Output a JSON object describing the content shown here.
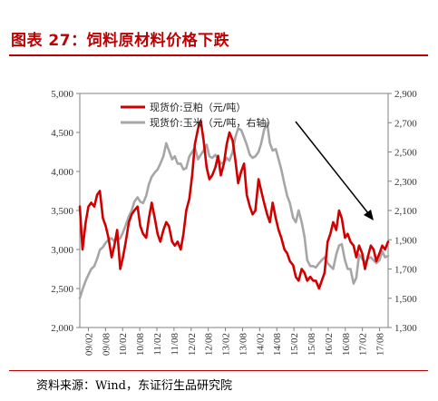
{
  "header": {
    "title": "图表 27：饲料原材料价格下跌"
  },
  "footer": {
    "source": "资料来源：Wind，东证衍生品研究院"
  },
  "chart_data": {
    "type": "line",
    "colors": {
      "soybean_meal": "#d00000",
      "corn": "#a6a6a6",
      "arrow": "#000000"
    },
    "x_tick_labels": [
      "09/02",
      "09/08",
      "10/02",
      "10/08",
      "11/02",
      "11/08",
      "12/02",
      "12/08",
      "13/02",
      "13/08",
      "14/02",
      "14/08",
      "15/02",
      "15/08",
      "16/02",
      "16/08",
      "17/02",
      "17/08"
    ],
    "x_range": [
      2009.0,
      2017.92
    ],
    "y_left": {
      "range": [
        2000,
        5000
      ],
      "ticks": [
        2000,
        2500,
        3000,
        3500,
        4000,
        4500,
        5000
      ],
      "tick_labels": [
        "2,000",
        "2,500",
        "3,000",
        "3,500",
        "4,000",
        "4,500",
        "5,000"
      ]
    },
    "y_right": {
      "range": [
        1300,
        2900
      ],
      "ticks": [
        1300,
        1500,
        1700,
        1900,
        2100,
        2300,
        2500,
        2700,
        2900
      ],
      "tick_labels": [
        "1,300",
        "1,500",
        "1,700",
        "1,900",
        "2,100",
        "2,300",
        "2,500",
        "2,700",
        "2,900"
      ]
    },
    "legend_position": "top-left",
    "series": [
      {
        "name": "现货价:豆粕（元/吨）",
        "axis": "left",
        "color": "#d00000",
        "x": [
          2009.0,
          2009.08,
          2009.17,
          2009.25,
          2009.33,
          2009.42,
          2009.5,
          2009.58,
          2009.67,
          2009.75,
          2009.83,
          2009.92,
          2010.0,
          2010.08,
          2010.17,
          2010.25,
          2010.33,
          2010.42,
          2010.5,
          2010.58,
          2010.67,
          2010.75,
          2010.83,
          2010.92,
          2011.0,
          2011.08,
          2011.17,
          2011.25,
          2011.33,
          2011.42,
          2011.5,
          2011.58,
          2011.67,
          2011.75,
          2011.83,
          2011.92,
          2012.0,
          2012.08,
          2012.17,
          2012.25,
          2012.33,
          2012.42,
          2012.5,
          2012.58,
          2012.67,
          2012.75,
          2012.83,
          2012.92,
          2013.0,
          2013.08,
          2013.17,
          2013.25,
          2013.33,
          2013.42,
          2013.5,
          2013.58,
          2013.67,
          2013.75,
          2013.83,
          2013.92,
          2014.0,
          2014.08,
          2014.17,
          2014.25,
          2014.33,
          2014.42,
          2014.5,
          2014.58,
          2014.67,
          2014.75,
          2014.83,
          2014.92,
          2015.0,
          2015.08,
          2015.17,
          2015.25,
          2015.33,
          2015.42,
          2015.5,
          2015.58,
          2015.67,
          2015.75,
          2015.83,
          2015.92,
          2016.0,
          2016.08,
          2016.17,
          2016.25,
          2016.33,
          2016.42,
          2016.5,
          2016.58,
          2016.67,
          2016.75,
          2016.83,
          2016.92,
          2017.0,
          2017.08,
          2017.17,
          2017.25,
          2017.33,
          2017.42,
          2017.5,
          2017.58,
          2017.67,
          2017.75,
          2017.83,
          2017.92
        ],
        "values": [
          3550,
          3000,
          3350,
          3550,
          3600,
          3550,
          3700,
          3750,
          3400,
          3300,
          3150,
          2900,
          3050,
          3250,
          2750,
          2900,
          3100,
          3350,
          3450,
          3500,
          3550,
          3300,
          3200,
          3150,
          3400,
          3600,
          3400,
          3200,
          3100,
          3250,
          3350,
          3300,
          3100,
          3050,
          3100,
          3000,
          3200,
          3500,
          3650,
          3950,
          4350,
          4550,
          4650,
          4400,
          4050,
          3900,
          3950,
          4050,
          4200,
          3950,
          4100,
          4350,
          4500,
          4400,
          4150,
          3850,
          4000,
          4100,
          3700,
          3550,
          3450,
          3500,
          3900,
          3750,
          3600,
          3450,
          3350,
          3600,
          3400,
          3250,
          3150,
          3000,
          2950,
          2850,
          2800,
          2650,
          2600,
          2750,
          2700,
          2600,
          2650,
          2600,
          2600,
          2500,
          2600,
          2700,
          3100,
          3200,
          3350,
          3250,
          3500,
          3400,
          3150,
          3200,
          3100,
          3050,
          2900,
          3050,
          2950,
          2750,
          2900,
          3050,
          3000,
          2850,
          2950,
          3050,
          3000,
          3100
        ]
      },
      {
        "name": "现货价:玉米（元/吨，右轴）",
        "axis": "right",
        "color": "#a6a6a6",
        "x": [
          2009.0,
          2009.08,
          2009.17,
          2009.25,
          2009.33,
          2009.42,
          2009.5,
          2009.58,
          2009.67,
          2009.75,
          2009.83,
          2009.92,
          2010.0,
          2010.08,
          2010.17,
          2010.25,
          2010.33,
          2010.42,
          2010.5,
          2010.58,
          2010.67,
          2010.75,
          2010.83,
          2010.92,
          2011.0,
          2011.08,
          2011.17,
          2011.25,
          2011.33,
          2011.42,
          2011.5,
          2011.58,
          2011.67,
          2011.75,
          2011.83,
          2011.92,
          2012.0,
          2012.08,
          2012.17,
          2012.25,
          2012.33,
          2012.42,
          2012.5,
          2012.58,
          2012.67,
          2012.75,
          2012.83,
          2012.92,
          2013.0,
          2013.08,
          2013.17,
          2013.25,
          2013.33,
          2013.42,
          2013.5,
          2013.58,
          2013.67,
          2013.75,
          2013.83,
          2013.92,
          2014.0,
          2014.08,
          2014.17,
          2014.25,
          2014.33,
          2014.42,
          2014.5,
          2014.58,
          2014.67,
          2014.75,
          2014.83,
          2014.92,
          2015.0,
          2015.08,
          2015.17,
          2015.25,
          2015.33,
          2015.42,
          2015.5,
          2015.58,
          2015.67,
          2015.75,
          2015.83,
          2015.92,
          2016.0,
          2016.08,
          2016.17,
          2016.25,
          2016.33,
          2016.42,
          2016.5,
          2016.58,
          2016.67,
          2016.75,
          2016.83,
          2016.92,
          2017.0,
          2017.08,
          2017.17,
          2017.25,
          2017.33,
          2017.42,
          2017.5,
          2017.58,
          2017.67,
          2017.75,
          2017.83,
          2017.92
        ],
        "values": [
          1500,
          1560,
          1620,
          1660,
          1700,
          1720,
          1770,
          1830,
          1850,
          1880,
          1900,
          1910,
          1890,
          1900,
          1910,
          1950,
          2000,
          2060,
          2100,
          2160,
          2190,
          2160,
          2150,
          2200,
          2280,
          2330,
          2360,
          2380,
          2420,
          2470,
          2560,
          2510,
          2450,
          2470,
          2420,
          2420,
          2380,
          2390,
          2470,
          2500,
          2530,
          2450,
          2480,
          2510,
          2550,
          2470,
          2460,
          2480,
          2450,
          2420,
          2430,
          2460,
          2440,
          2500,
          2600,
          2660,
          2650,
          2600,
          2550,
          2480,
          2460,
          2470,
          2500,
          2560,
          2650,
          2700,
          2560,
          2510,
          2520,
          2450,
          2380,
          2280,
          2200,
          2150,
          2050,
          2020,
          2100,
          2020,
          1920,
          1760,
          1720,
          1720,
          1710,
          1740,
          1760,
          1780,
          1740,
          1720,
          1700,
          1800,
          1860,
          1870,
          1760,
          1700,
          1700,
          1600,
          1640,
          1800,
          1770,
          1740,
          1770,
          1780,
          1760,
          1740,
          1760,
          1820,
          1780,
          1790
        ]
      }
    ]
  }
}
